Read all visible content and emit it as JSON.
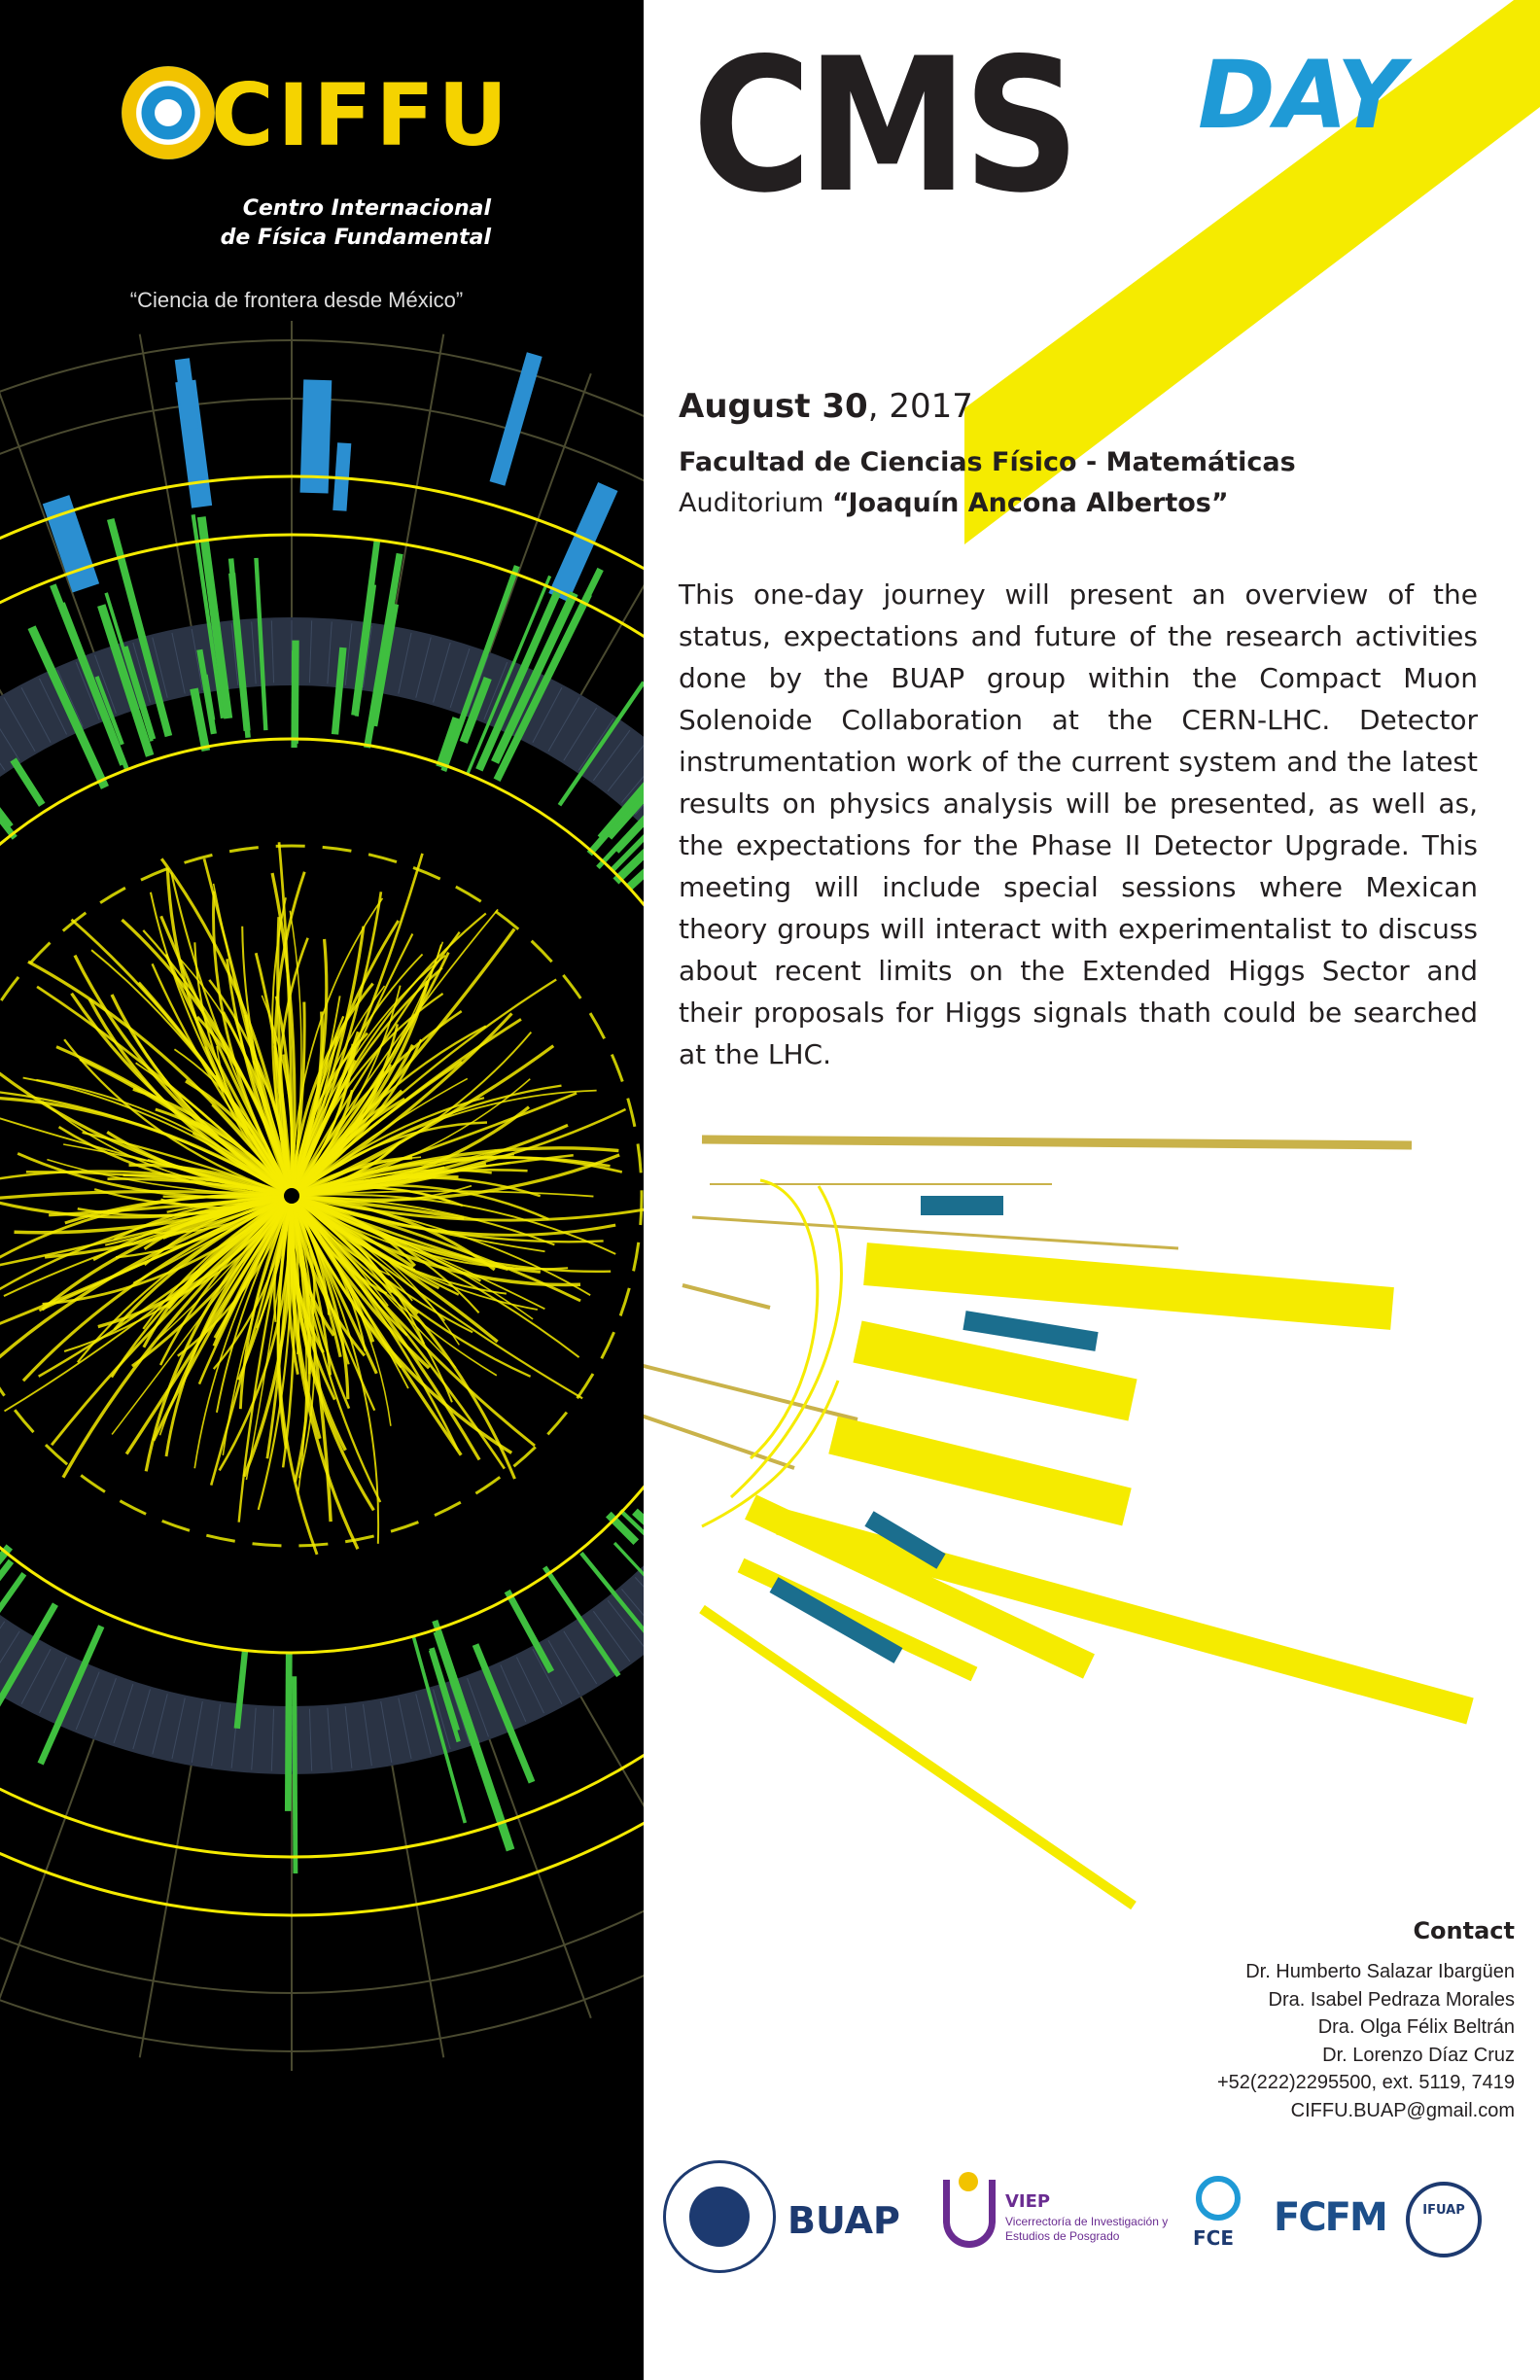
{
  "header": {
    "org_name": "CIFFU",
    "org_subtitle_line1": "Centro Internacional",
    "org_subtitle_line2": "de Física Fundamental",
    "motto": "“Ciencia de frontera desde México”"
  },
  "event": {
    "title_main": "CMS",
    "title_accent": "DAY",
    "date_bold": "August 30",
    "date_rest": ", 2017",
    "venue_faculty": "Facultad de Ciencias Físico - Matemáticas",
    "venue_prefix": "Auditorium ",
    "venue_name": "“Joaquín Ancona Albertos”",
    "description": "This one-day journey will present an overview of the status, expectations and future of the research activities done by the BUAP group within the Compact Muon Solenoide Collaboration at the CERN-LHC. Detector instrumentation work of the current system and the latest results on physics analysis will be presented, as well as, the expectations for the Phase II Detector Upgrade. This meeting will include special sessions where Mexican theory groups will interact with experimentalist to discuss about recent limits on the Extended Higgs Sector and their proposals for Higgs signals thath could be searched at the LHC."
  },
  "contact": {
    "title": "Contact",
    "lines": [
      "Dr. Humberto Salazar Ibargüen",
      "Dra. Isabel Pedraza Morales",
      "Dra. Olga Félix Beltrán",
      "Dr. Lorenzo Díaz Cruz",
      "+52(222)2295500, ext. 5119, 7419",
      "CIFFU.BUAP@gmail.com"
    ]
  },
  "sponsors": {
    "buap": "BUAP",
    "viep_title": "VIEP",
    "viep_subtitle": "Vicerrectoría de Investigación y Estudios de Posgrado",
    "fce": "FCE",
    "fcfm": "FCFM",
    "ifuap": "IFUAP"
  },
  "colors": {
    "left_bg": "#000000",
    "yellow": "#f5eb00",
    "green": "#3fbf3f",
    "blue": "#2b8fd1",
    "teal": "#1b6e8e",
    "gold": "#c9b24a",
    "title_dark": "#231f20",
    "accent_blue": "#1f9ad6"
  }
}
